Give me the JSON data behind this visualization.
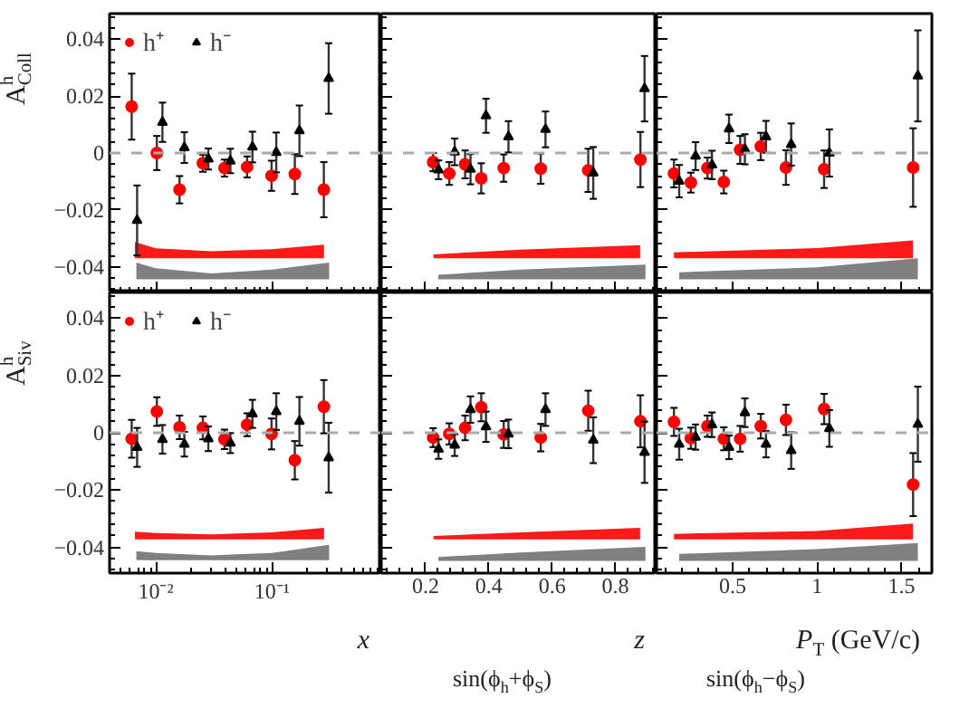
{
  "chart_data": [
    {
      "type": "scatter",
      "ylabel": "A$^{h}$$_{Coll}$",
      "log": "x",
      "xlim": [
        0.004,
        0.87
      ],
      "xticks": [
        {
          "value": 0.01,
          "label": null
        },
        {
          "value": 0.1,
          "label": null
        }
      ],
      "ylim": [
        -0.049,
        0.049
      ],
      "yticks": [
        {
          "value": -0.04,
          "label": "−0.04"
        },
        {
          "value": -0.02,
          "label": "−0.02"
        },
        0,
        0.02,
        0.04
      ],
      "tick_labels": "y",
      "legend": "top left",
      "ref_lines": [
        {
          "axis": "y",
          "value": 0,
          "color": "#aaaaaa",
          "line_style": "dashed"
        }
      ],
      "series": [
        {
          "type": "line",
          "color": "#ff1a1a",
          "x": [
            0.0066,
            0.01,
            0.03,
            0.1,
            0.28
          ],
          "values": [
            null,
            null,
            null,
            null,
            null
          ],
          "lower": [
            -0.037,
            -0.037,
            -0.037,
            -0.037,
            -0.037
          ],
          "upper": [
            -0.0313,
            -0.0335,
            -0.0345,
            -0.0338,
            -0.0322
          ]
        },
        {
          "type": "line",
          "color": "#808080",
          "x": [
            0.0068,
            0.01,
            0.03,
            0.1,
            0.31
          ],
          "values": [
            null,
            null,
            null,
            null,
            null
          ],
          "lower": [
            -0.0444,
            -0.0444,
            -0.0444,
            -0.0444,
            -0.0444
          ],
          "upper": [
            -0.0385,
            -0.0405,
            -0.0423,
            -0.041,
            -0.0385
          ]
        },
        {
          "name": "h⁺",
          "color": "#ff0000",
          "marker": "circle",
          "x": [
            0.0062,
            0.0102,
            0.016,
            0.0254,
            0.039,
            0.061,
            0.099,
            0.157,
            0.279
          ],
          "values": [
            0.0163,
            0,
            -0.0129,
            -0.0036,
            -0.0053,
            -0.0049,
            -0.008,
            -0.0074,
            -0.0129
          ],
          "errors": [
            0.0116,
            0.006,
            0.0048,
            0.003,
            0.003,
            0.0037,
            0.0053,
            0.007,
            0.0097
          ]
        },
        {
          "name": "h⁻",
          "color": "#000000",
          "marker": "triangle",
          "x": [
            0.0069,
            0.0114,
            0.0176,
            0.0283,
            0.0438,
            0.0678,
            0.1087,
            0.172,
            0.307
          ],
          "values": [
            -0.0237,
            0.0108,
            0.0019,
            -0.0021,
            -0.0028,
            0.0021,
            0.0002,
            0.0078,
            0.0262
          ],
          "errors": [
            0.0123,
            0.0069,
            0.0054,
            0.0037,
            0.0043,
            0.0054,
            0.007,
            0.0089,
            0.0124
          ]
        }
      ]
    },
    {
      "type": "scatter",
      "xlim": [
        0.06,
        0.93
      ],
      "xticks": [
        {
          "value": 0.2,
          "label": null
        },
        {
          "value": 0.4,
          "label": null
        },
        {
          "value": 0.6,
          "label": null
        },
        {
          "value": 0.8,
          "label": null
        }
      ],
      "ylim": [
        -0.049,
        0.049
      ],
      "yticks": [
        {
          "value": -0.04,
          "label": null
        },
        {
          "value": -0.02,
          "label": null
        },
        {
          "value": 0,
          "label": null
        },
        {
          "value": 0.02,
          "label": null
        },
        {
          "value": 0.04,
          "label": null
        }
      ],
      "tick_labels": false,
      "ref_lines": [
        {
          "axis": "y",
          "value": 0,
          "color": "#aaaaaa",
          "line_style": "dashed"
        }
      ],
      "series": [
        {
          "type": "line",
          "color": "#ff1a1a",
          "x": [
            0.225,
            0.5,
            0.878
          ],
          "values": [
            null,
            null,
            null
          ],
          "lower": [
            -0.037,
            -0.037,
            -0.037
          ],
          "upper": [
            -0.0356,
            -0.034,
            -0.0324
          ]
        },
        {
          "type": "line",
          "color": "#808080",
          "x": [
            0.24,
            0.5,
            0.895
          ],
          "values": [
            null,
            null,
            null
          ],
          "lower": [
            -0.0444,
            -0.0444,
            -0.0444
          ],
          "upper": [
            -0.0428,
            -0.041,
            -0.0392
          ]
        },
        {
          "color": "#ff0000",
          "marker": "circle",
          "x": [
            0.224,
            0.275,
            0.325,
            0.376,
            0.447,
            0.564,
            0.714,
            0.879
          ],
          "values": [
            -0.0032,
            -0.0072,
            -0.004,
            -0.0089,
            -0.0053,
            -0.0055,
            -0.0061,
            -0.0023
          ],
          "errors": [
            0.0032,
            0.004,
            0.0049,
            0.0053,
            0.0048,
            0.0053,
            0.0076,
            0.0097
          ]
        },
        {
          "color": "#000000",
          "marker": "triangle",
          "x": [
            0.241,
            0.292,
            0.342,
            0.391,
            0.462,
            0.579,
            0.73,
            0.892
          ],
          "values": [
            -0.0059,
            0.0004,
            -0.0057,
            0.0131,
            0.0057,
            0.0083,
            -0.007,
            0.0226
          ],
          "errors": [
            0.0033,
            0.0047,
            0.0053,
            0.006,
            0.0055,
            0.0063,
            0.0091,
            0.0115
          ]
        }
      ]
    },
    {
      "type": "scatter",
      "xlim": [
        0.05,
        1.68
      ],
      "xticks": [
        {
          "value": 0.5,
          "label": null
        },
        {
          "value": 1,
          "label": null
        },
        {
          "value": 1.5,
          "label": null
        }
      ],
      "ylim": [
        -0.049,
        0.049
      ],
      "yticks": [
        {
          "value": -0.04,
          "label": null
        },
        {
          "value": -0.02,
          "label": null
        },
        {
          "value": 0,
          "label": null
        },
        {
          "value": 0.02,
          "label": null
        },
        {
          "value": 0.04,
          "label": null
        }
      ],
      "tick_labels": false,
      "ref_lines": [
        {
          "axis": "y",
          "value": 0,
          "color": "#aaaaaa",
          "line_style": "dashed"
        }
      ],
      "series": [
        {
          "type": "line",
          "color": "#ff1a1a",
          "x": [
            0.153,
            1.0,
            1.569
          ],
          "values": [
            null,
            null,
            null
          ],
          "lower": [
            -0.037,
            -0.037,
            -0.037
          ],
          "upper": [
            -0.0349,
            -0.0334,
            -0.0307
          ]
        },
        {
          "type": "line",
          "color": "#808080",
          "x": [
            0.184,
            1.0,
            1.597
          ],
          "values": [
            null,
            null,
            null
          ],
          "lower": [
            -0.0444,
            -0.0444,
            -0.0444
          ],
          "upper": [
            -0.0419,
            -0.0402,
            -0.037
          ]
        },
        {
          "color": "#ff0000",
          "marker": "circle",
          "x": [
            0.153,
            0.253,
            0.351,
            0.448,
            0.545,
            0.667,
            0.816,
            1.042,
            1.569
          ],
          "values": [
            -0.0072,
            -0.0104,
            -0.0053,
            -0.0102,
            0.0011,
            0.0023,
            -0.0051,
            -0.0057,
            -0.0051
          ],
          "errors": [
            0.0049,
            0.0035,
            0.0037,
            0.004,
            0.0049,
            0.0048,
            0.0061,
            0.0066,
            0.0138
          ]
        },
        {
          "color": "#000000",
          "marker": "triangle",
          "x": [
            0.184,
            0.281,
            0.378,
            0.479,
            0.573,
            0.698,
            0.847,
            1.073,
            1.597
          ],
          "values": [
            -0.0099,
            -0.0011,
            -0.0042,
            0.0085,
            0.0013,
            0.0057,
            0.003,
            0,
            0.0271
          ],
          "errors": [
            0.0057,
            0.0049,
            0.005,
            0.005,
            0.0053,
            0.0056,
            0.0074,
            0.0083,
            0.016
          ]
        }
      ]
    },
    {
      "type": "scatter",
      "ylabel": "A$^{h}$$_{Siv}$",
      "xlabel": "x",
      "log": "x",
      "xlim": [
        0.004,
        0.87
      ],
      "xticks": [
        {
          "value": 0.01,
          "label": "10⁻²"
        },
        {
          "value": 0.1,
          "label": "10⁻¹"
        }
      ],
      "ylim": [
        -0.049,
        0.049
      ],
      "yticks": [
        {
          "value": -0.04,
          "label": "−0.04"
        },
        {
          "value": -0.02,
          "label": "−0.02"
        },
        0,
        0.02,
        0.04
      ],
      "legend": "top left",
      "ref_lines": [
        {
          "axis": "y",
          "value": 0,
          "color": "#aaaaaa",
          "line_style": "dashed"
        }
      ],
      "series": [
        {
          "type": "line",
          "color": "#ff1a1a",
          "x": [
            0.0066,
            0.01,
            0.03,
            0.1,
            0.28
          ],
          "values": [
            null,
            null,
            null,
            null,
            null
          ],
          "lower": [
            -0.0372,
            -0.0372,
            -0.0372,
            -0.0372,
            -0.0372
          ],
          "upper": [
            -0.0345,
            -0.035,
            -0.0355,
            -0.0348,
            -0.0332
          ]
        },
        {
          "type": "line",
          "color": "#808080",
          "x": [
            0.0068,
            0.01,
            0.03,
            0.1,
            0.31
          ],
          "values": [
            null,
            null,
            null,
            null,
            null
          ],
          "lower": [
            -0.0445,
            -0.0445,
            -0.0445,
            -0.0445,
            -0.0445
          ],
          "upper": [
            -0.0413,
            -0.042,
            -0.0428,
            -0.042,
            -0.0391
          ]
        },
        {
          "name": "h⁺",
          "color": "#ff0000",
          "marker": "circle",
          "x": [
            0.0062,
            0.0102,
            0.016,
            0.0254,
            0.039,
            0.061,
            0.099,
            0.157,
            0.279
          ],
          "values": [
            -0.0021,
            0.0074,
            0.0019,
            0.0017,
            -0.0023,
            0.0028,
            -0.0004,
            -0.0096,
            0.0091
          ],
          "errors": [
            0.0066,
            0.005,
            0.0041,
            0.004,
            0.0034,
            0.004,
            0.0054,
            0.0067,
            0.0093
          ]
        },
        {
          "name": "h⁻",
          "color": "#000000",
          "marker": "triangle",
          "x": [
            0.0069,
            0.0114,
            0.0176,
            0.0283,
            0.0438,
            0.0678,
            0.1087,
            0.172,
            0.307
          ],
          "values": [
            -0.0051,
            -0.0023,
            -0.004,
            -0.0021,
            -0.0036,
            0.0066,
            0.0074,
            0.004,
            -0.0087
          ],
          "errors": [
            0.0068,
            0.005,
            0.0043,
            0.0043,
            0.0035,
            0.0049,
            0.0064,
            0.0085,
            0.0122
          ]
        }
      ]
    },
    {
      "type": "scatter",
      "xlabel": "z",
      "xlim": [
        0.06,
        0.93
      ],
      "xticks": [
        0.2,
        0.4,
        0.6,
        0.8
      ],
      "ylim": [
        -0.049,
        0.049
      ],
      "yticks": [
        {
          "value": -0.04,
          "label": null
        },
        {
          "value": -0.02,
          "label": null
        },
        {
          "value": 0,
          "label": null
        },
        {
          "value": 0.02,
          "label": null
        },
        {
          "value": 0.04,
          "label": null
        }
      ],
      "tick_labels": "x",
      "annotations": [
        "sin(ϕ$_{h}$+ϕ$_{S}$)"
      ],
      "ref_lines": [
        {
          "axis": "y",
          "value": 0,
          "color": "#aaaaaa",
          "line_style": "dashed"
        }
      ],
      "series": [
        {
          "type": "line",
          "color": "#ff1a1a",
          "x": [
            0.225,
            0.5,
            0.878
          ],
          "values": [
            null,
            null,
            null
          ],
          "lower": [
            -0.0372,
            -0.0372,
            -0.0372
          ],
          "upper": [
            -0.036,
            -0.0348,
            -0.0332
          ]
        },
        {
          "type": "line",
          "color": "#808080",
          "x": [
            0.24,
            0.5,
            0.895
          ],
          "values": [
            null,
            null,
            null
          ],
          "lower": [
            -0.0447,
            -0.0447,
            -0.0447
          ],
          "upper": [
            -0.0434,
            -0.0418,
            -0.0398
          ]
        },
        {
          "color": "#ff0000",
          "marker": "circle",
          "x": [
            0.224,
            0.275,
            0.325,
            0.376,
            0.447,
            0.564,
            0.714,
            0.879
          ],
          "values": [
            -0.0017,
            -0.0004,
            0.0017,
            0.0089,
            -0.0006,
            -0.0017,
            0.0077,
            0.004
          ],
          "errors": [
            0.0033,
            0.0037,
            0.0043,
            0.0049,
            0.0047,
            0.0048,
            0.007,
            0.0091
          ]
        },
        {
          "color": "#000000",
          "marker": "triangle",
          "x": [
            0.241,
            0.292,
            0.342,
            0.391,
            0.462,
            0.579,
            0.73,
            0.892
          ],
          "values": [
            -0.0057,
            -0.0043,
            0.0081,
            0.0021,
            -0.0004,
            0.0081,
            -0.0026,
            -0.0068
          ],
          "errors": [
            0.0034,
            0.0038,
            0.0046,
            0.0053,
            0.005,
            0.0057,
            0.008,
            0.0107
          ]
        }
      ]
    },
    {
      "type": "scatter",
      "xlabel": "P$_{T}$ (GeV/c)",
      "xlim": [
        0.05,
        1.68
      ],
      "xticks": [
        0.5,
        1,
        1.5
      ],
      "ylim": [
        -0.049,
        0.049
      ],
      "yticks": [
        {
          "value": -0.04,
          "label": null
        },
        {
          "value": -0.02,
          "label": null
        },
        {
          "value": 0,
          "label": null
        },
        {
          "value": 0.02,
          "label": null
        },
        {
          "value": 0.04,
          "label": null
        }
      ],
      "tick_labels": "x",
      "annotations": [
        "sin(ϕ$_{h}$−ϕ$_{S}$)"
      ],
      "ref_lines": [
        {
          "axis": "y",
          "value": 0,
          "color": "#aaaaaa",
          "line_style": "dashed"
        }
      ],
      "series": [
        {
          "type": "line",
          "color": "#ff1a1a",
          "x": [
            0.153,
            1.0,
            1.569
          ],
          "values": [
            null,
            null,
            null
          ],
          "lower": [
            -0.0372,
            -0.0372,
            -0.0372
          ],
          "upper": [
            -0.0353,
            -0.0343,
            -0.0317
          ]
        },
        {
          "type": "line",
          "color": "#808080",
          "x": [
            0.184,
            1.0,
            1.597
          ],
          "values": [
            null,
            null,
            null
          ],
          "lower": [
            -0.0447,
            -0.0447,
            -0.0447
          ],
          "upper": [
            -0.0423,
            -0.0406,
            -0.0385
          ]
        },
        {
          "color": "#ff0000",
          "marker": "circle",
          "x": [
            0.153,
            0.253,
            0.351,
            0.448,
            0.545,
            0.667,
            0.816,
            1.042,
            1.569
          ],
          "values": [
            0.0038,
            -0.0019,
            0.0023,
            -0.0021,
            -0.0021,
            0.0023,
            0.0045,
            0.0083,
            -0.0181
          ],
          "errors": [
            0.0049,
            0.0037,
            0.0037,
            0.004,
            0.0045,
            0.0043,
            0.0053,
            0.0053,
            0.011
          ]
        },
        {
          "color": "#000000",
          "marker": "triangle",
          "x": [
            0.184,
            0.281,
            0.378,
            0.479,
            0.573,
            0.698,
            0.847,
            1.073,
            1.597
          ],
          "values": [
            -0.004,
            -0.0015,
            0.0028,
            -0.0051,
            0.007,
            -0.004,
            -0.0062,
            0.0015,
            0.003
          ],
          "errors": [
            0.0054,
            0.0044,
            0.0043,
            0.0041,
            0.005,
            0.0046,
            0.0064,
            0.0064,
            0.0131
          ]
        }
      ]
    }
  ]
}
